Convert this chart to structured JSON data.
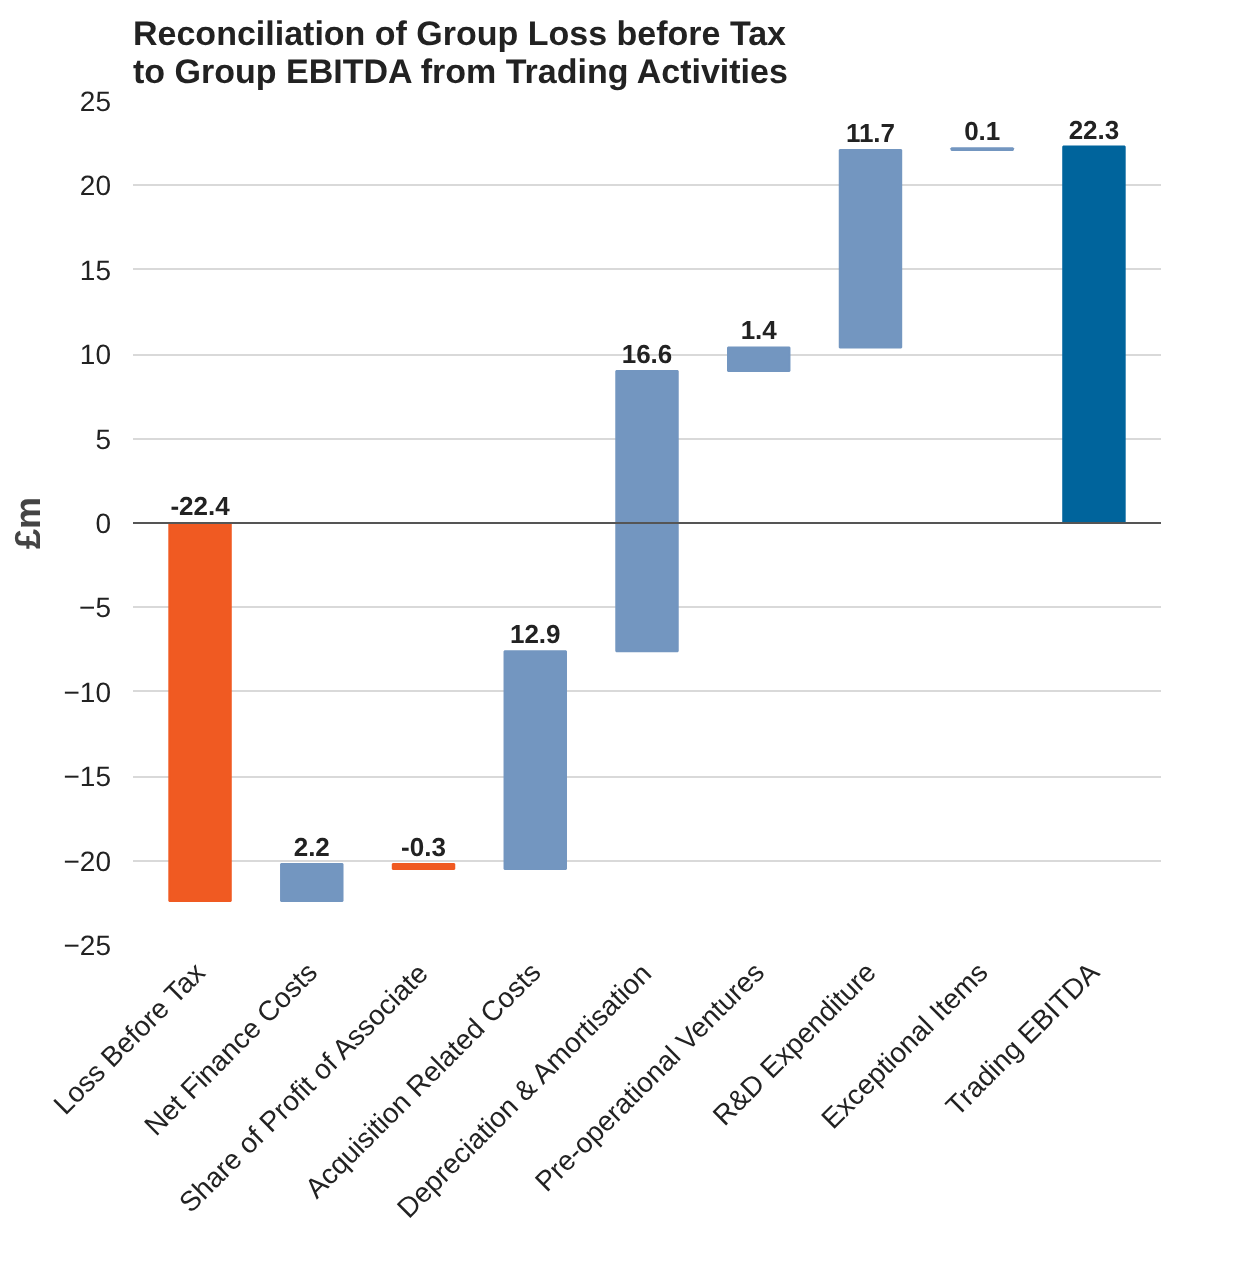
{
  "chart_data": {
    "type": "bar",
    "title": "Reconciliation of Group Loss before Tax\nto Group EBITDA from Trading Activities",
    "ylabel": "£m",
    "categories": [
      "Loss Before Tax",
      "Net Finance Costs",
      "Share of Profit of Associate",
      "Acquisition Related Costs",
      "Depreciation & Amortisation",
      "Pre-operational Ventures",
      "R&D Expenditure",
      "Exceptional Items",
      "Trading EBITDA"
    ],
    "values": [
      -22.4,
      2.2,
      -0.3,
      12.9,
      16.6,
      1.4,
      11.7,
      0.1,
      22.3
    ],
    "base": [
      0,
      -22.4,
      -20.2,
      -20.5,
      -7.6,
      9.0,
      10.4,
      22.1,
      0
    ],
    "colors": [
      "#f05a22",
      "#7396c0",
      "#f05a22",
      "#7396c0",
      "#7396c0",
      "#7396c0",
      "#7396c0",
      "#7396c0",
      "#00649c"
    ],
    "value_labels": [
      "-22.4",
      "2.2",
      "-0.3",
      "12.9",
      "16.6",
      "1.4",
      "11.7",
      "0.1",
      "22.3"
    ],
    "ylim": [
      -25,
      25
    ],
    "yticks": [
      -25,
      -20,
      -15,
      -10,
      -5,
      0,
      5,
      10,
      15,
      20,
      25
    ],
    "grid": "y"
  }
}
